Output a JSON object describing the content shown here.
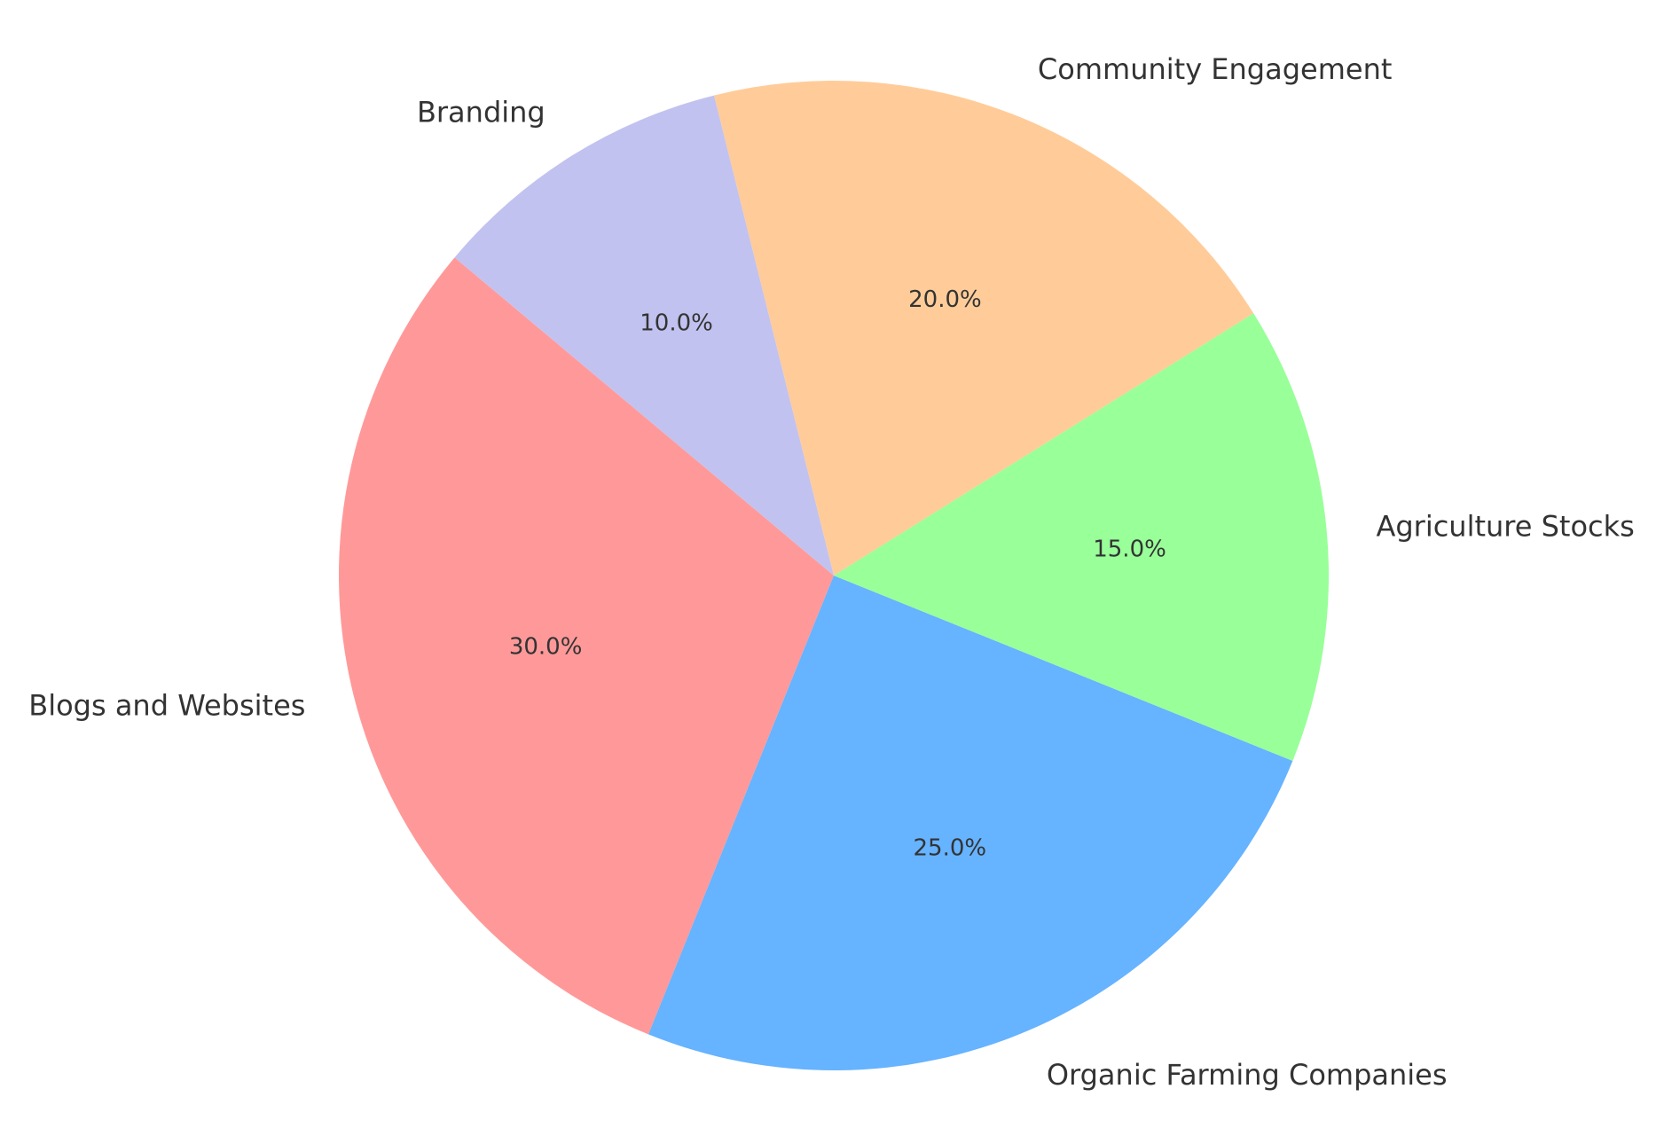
{
  "chart_data": {
    "type": "pie",
    "categories": [
      "Blogs and Websites",
      "Organic Farming Companies",
      "Agriculture Stocks",
      "Community Engagement",
      "Branding"
    ],
    "values": [
      30,
      25,
      15,
      20,
      10
    ],
    "value_labels": [
      "30.0%",
      "25.0%",
      "15.0%",
      "20.0%",
      "10.0%"
    ],
    "colors": [
      "#ff9999",
      "#66b3ff",
      "#99ff99",
      "#ffcc99",
      "#c2c2f0"
    ]
  }
}
